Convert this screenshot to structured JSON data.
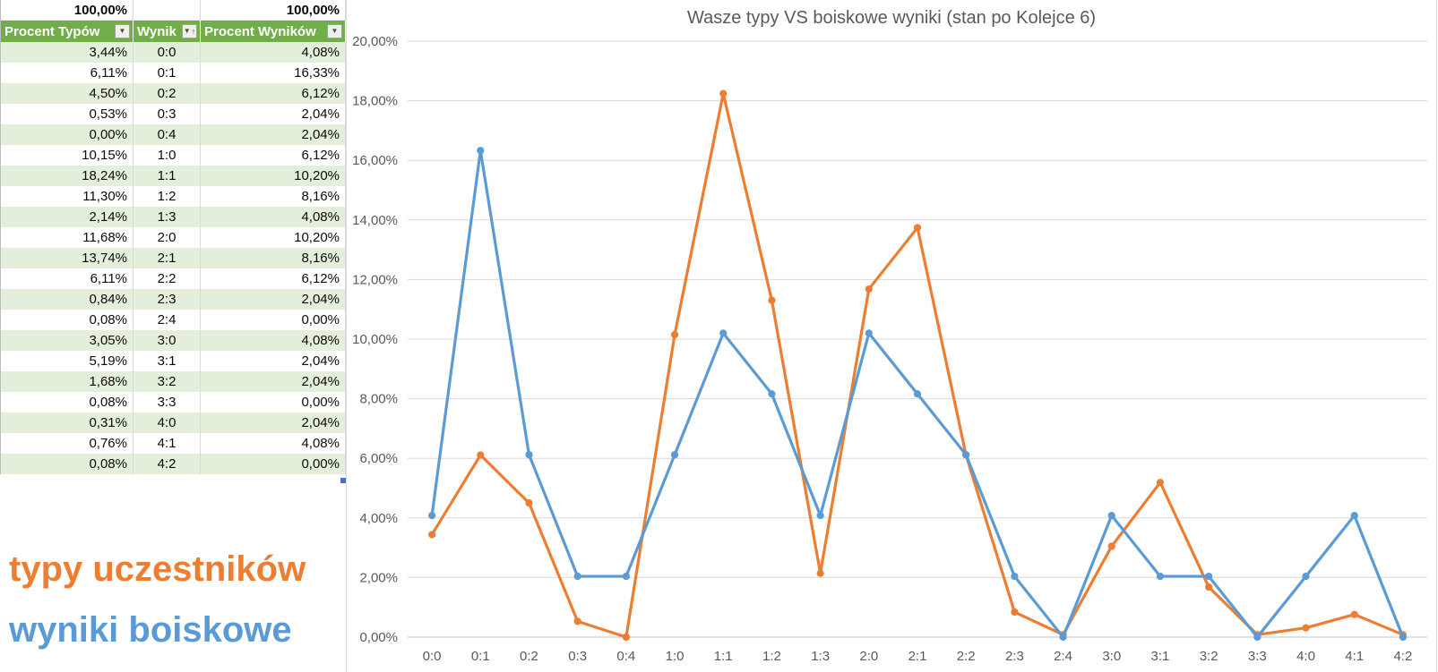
{
  "table": {
    "totals": {
      "procent_typow": "100,00%",
      "wynik": "",
      "procent_wynikow": "100,00%"
    },
    "headers": [
      {
        "label": "Procent Typów",
        "icon": "filter-dropdown-icon"
      },
      {
        "label": "Wynik",
        "icon": "filter-sorted-asc-icon"
      },
      {
        "label": "Procent Wyników",
        "icon": "filter-dropdown-icon"
      }
    ],
    "rows": [
      [
        "3,44%",
        "0:0",
        "4,08%"
      ],
      [
        "6,11%",
        "0:1",
        "16,33%"
      ],
      [
        "4,50%",
        "0:2",
        "6,12%"
      ],
      [
        "0,53%",
        "0:3",
        "2,04%"
      ],
      [
        "0,00%",
        "0:4",
        "2,04%"
      ],
      [
        "10,15%",
        "1:0",
        "6,12%"
      ],
      [
        "18,24%",
        "1:1",
        "10,20%"
      ],
      [
        "11,30%",
        "1:2",
        "8,16%"
      ],
      [
        "2,14%",
        "1:3",
        "4,08%"
      ],
      [
        "11,68%",
        "2:0",
        "10,20%"
      ],
      [
        "13,74%",
        "2:1",
        "8,16%"
      ],
      [
        "6,11%",
        "2:2",
        "6,12%"
      ],
      [
        "0,84%",
        "2:3",
        "2,04%"
      ],
      [
        "0,08%",
        "2:4",
        "0,00%"
      ],
      [
        "3,05%",
        "3:0",
        "4,08%"
      ],
      [
        "5,19%",
        "3:1",
        "2,04%"
      ],
      [
        "1,68%",
        "3:2",
        "2,04%"
      ],
      [
        "0,08%",
        "3:3",
        "0,00%"
      ],
      [
        "0,31%",
        "4:0",
        "2,04%"
      ],
      [
        "0,76%",
        "4:1",
        "4,08%"
      ],
      [
        "0,08%",
        "4:2",
        "0,00%"
      ]
    ]
  },
  "icons": {
    "filter_dropdown": "▼",
    "sort_asc": "↑"
  },
  "legend": {
    "items": [
      {
        "label": "typy uczestników",
        "color": "#ED7D31"
      },
      {
        "label": "wyniki boiskowe",
        "color": "#5B9BD5"
      }
    ]
  },
  "chart_data": {
    "type": "line",
    "title": "Wasze typy VS boiskowe wyniki (stan po Kolejce 6)",
    "categories": [
      "0:0",
      "0:1",
      "0:2",
      "0:3",
      "0:4",
      "1:0",
      "1:1",
      "1:2",
      "1:3",
      "2:0",
      "2:1",
      "2:2",
      "2:3",
      "2:4",
      "3:0",
      "3:1",
      "3:2",
      "3:3",
      "4:0",
      "4:1",
      "4:2"
    ],
    "series": [
      {
        "name": "typy uczestników",
        "color": "#ED7D31",
        "values": [
          3.44,
          6.11,
          4.5,
          0.53,
          0.0,
          10.15,
          18.24,
          11.3,
          2.14,
          11.68,
          13.74,
          6.11,
          0.84,
          0.08,
          3.05,
          5.19,
          1.68,
          0.08,
          0.31,
          0.76,
          0.08
        ]
      },
      {
        "name": "wyniki boiskowe",
        "color": "#5B9BD5",
        "values": [
          4.08,
          16.33,
          6.12,
          2.04,
          2.04,
          6.12,
          10.2,
          8.16,
          4.08,
          10.2,
          8.16,
          6.12,
          2.04,
          0.0,
          4.08,
          2.04,
          2.04,
          0.0,
          2.04,
          4.08,
          0.0
        ]
      }
    ],
    "xlabel": "",
    "ylabel": "",
    "ylim": [
      0,
      20
    ],
    "y_tick_step": 2,
    "y_tick_labels": [
      "0,00%",
      "2,00%",
      "4,00%",
      "6,00%",
      "8,00%",
      "10,00%",
      "12,00%",
      "14,00%",
      "16,00%",
      "18,00%",
      "20,00%"
    ],
    "grid": true,
    "legend_position": "external-cells-bottom-left",
    "colors": {
      "grid": "#D9D9D9",
      "zero_axis": "#C3C3C3",
      "axis_text": "#595959",
      "title": "#595959"
    }
  }
}
